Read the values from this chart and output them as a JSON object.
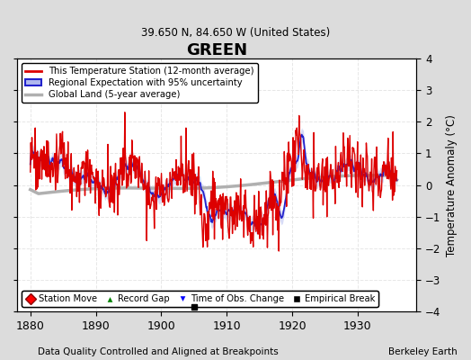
{
  "title": "GREEN",
  "subtitle": "39.650 N, 84.650 W (United States)",
  "xlabel_bottom": "Data Quality Controlled and Aligned at Breakpoints",
  "xlabel_right": "Berkeley Earth",
  "ylabel": "Temperature Anomaly (°C)",
  "xlim": [
    1878,
    1939
  ],
  "ylim": [
    -4,
    4
  ],
  "yticks": [
    -4,
    -3,
    -2,
    -1,
    0,
    1,
    2,
    3,
    4
  ],
  "xticks": [
    1880,
    1890,
    1900,
    1910,
    1920,
    1930
  ],
  "fig_bg_color": "#dcdcdc",
  "plot_bg_color": "#ffffff",
  "station_color": "#dd0000",
  "regional_color": "#2222cc",
  "regional_shade_color": "#b0b8ee",
  "global_color": "#b0b0b0",
  "grid_color": "#e0e0e0",
  "empirical_break_x": 1905,
  "empirical_break_y": -3.85,
  "seed": 99
}
